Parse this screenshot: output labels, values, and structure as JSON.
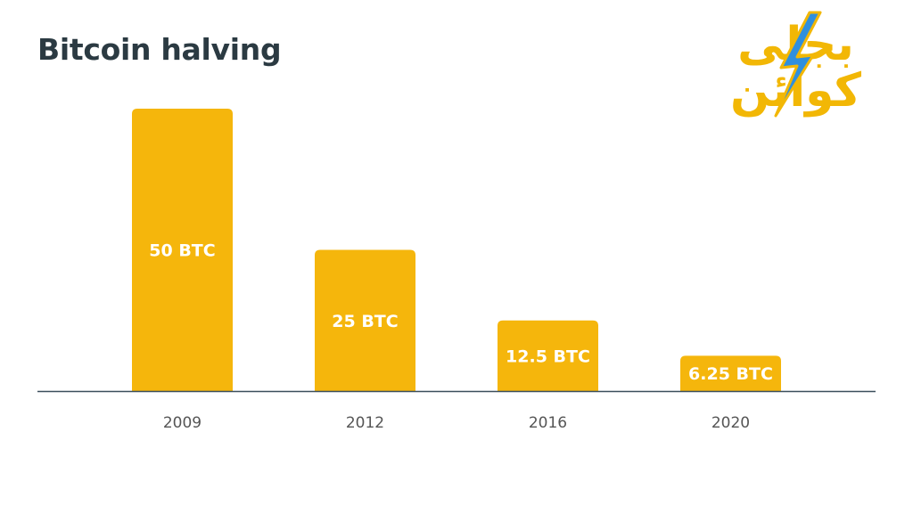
{
  "title": "Bitcoin halving",
  "logo": {
    "text": "بجلی کوائن",
    "bolt_color": "#2f8fde",
    "text_color": "#f2b705"
  },
  "colors": {
    "bar": "#f5b60c",
    "axis": "#3b4f5c",
    "tick_text": "#555555",
    "title": "#2b3a42"
  },
  "chart_data": {
    "type": "bar",
    "categories": [
      "2009",
      "2012",
      "2016",
      "2020"
    ],
    "values": [
      50,
      25,
      12.5,
      6.25
    ],
    "data_labels": [
      "50 BTC",
      "25 BTC",
      "12.5 BTC",
      "6.25 BTC"
    ],
    "title": "Bitcoin halving",
    "xlabel": "",
    "ylabel": "",
    "ylim": [
      0,
      50
    ],
    "grid": false,
    "legend": "none"
  }
}
